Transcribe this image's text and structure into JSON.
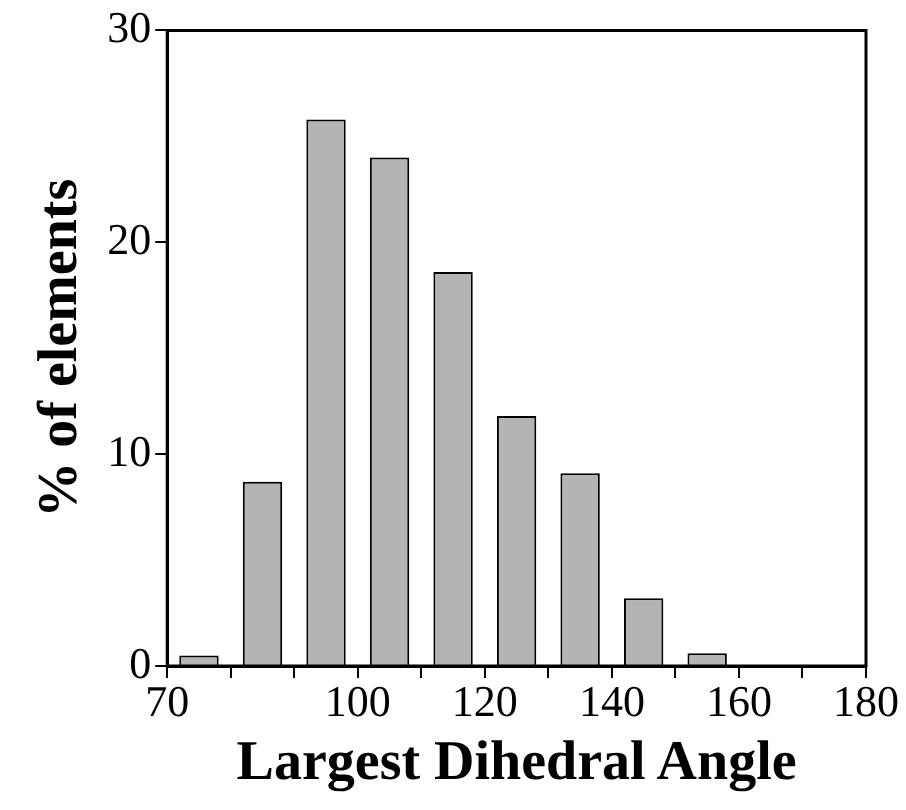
{
  "chart_data": {
    "type": "histogram",
    "xlabel": "Largest Dihedral Angle",
    "ylabel": "% of elements",
    "bins": [
      70,
      80,
      90,
      100,
      110,
      120,
      130,
      140,
      150,
      160
    ],
    "values": [
      0.5,
      8.7,
      25.8,
      24,
      18.6,
      11.8,
      9.1,
      3.2,
      0.6
    ],
    "color": "#b4b4b4",
    "xlim": [
      70,
      180
    ],
    "xticks": [
      70,
      {
        "value": 80,
        "label": null
      },
      {
        "value": 90,
        "label": null
      },
      100,
      {
        "value": 110,
        "label": null
      },
      120,
      {
        "value": 130,
        "label": null
      },
      140,
      {
        "value": 150,
        "label": null
      },
      160,
      {
        "value": 170,
        "label": null
      },
      180
    ],
    "ylim": [
      0,
      30
    ],
    "yticks": [
      0,
      10,
      20,
      30
    ],
    "grid": false,
    "legend": false
  }
}
